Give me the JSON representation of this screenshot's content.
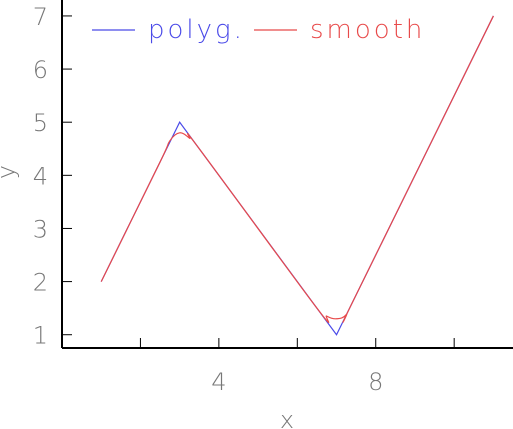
{
  "chart_data": {
    "type": "line",
    "xlabel": "x",
    "ylabel": "y",
    "xlim": [
      0,
      11.5
    ],
    "ylim": [
      0.75,
      7.3
    ],
    "x_ticks": [
      {
        "value": 2,
        "label": ""
      },
      {
        "value": 4,
        "label": "4"
      },
      {
        "value": 6,
        "label": ""
      },
      {
        "value": 8,
        "label": "8"
      },
      {
        "value": 10,
        "label": ""
      }
    ],
    "y_ticks": [
      {
        "value": 1,
        "label": "1"
      },
      {
        "value": 2,
        "label": "2"
      },
      {
        "value": 3,
        "label": "3"
      },
      {
        "value": 4,
        "label": "4"
      },
      {
        "value": 5,
        "label": "5"
      },
      {
        "value": 6,
        "label": "6"
      },
      {
        "value": 7,
        "label": "7"
      }
    ],
    "legend_position": "top-left",
    "series": [
      {
        "name": "polyg.",
        "color": "#4a4ae8",
        "x": [
          1,
          3,
          7,
          11
        ],
        "y": [
          2,
          5,
          1,
          7
        ]
      },
      {
        "name": "smooth",
        "color": "#e84a4a",
        "x": [
          1,
          2.5,
          2.75,
          3,
          3.25,
          3.5,
          6.5,
          6.75,
          7,
          7.25,
          7.5,
          11
        ],
        "y": [
          2,
          4.25,
          4.65,
          4.8,
          4.7,
          4.5,
          1.5,
          1.35,
          1.3,
          1.38,
          1.75,
          7
        ]
      }
    ]
  }
}
